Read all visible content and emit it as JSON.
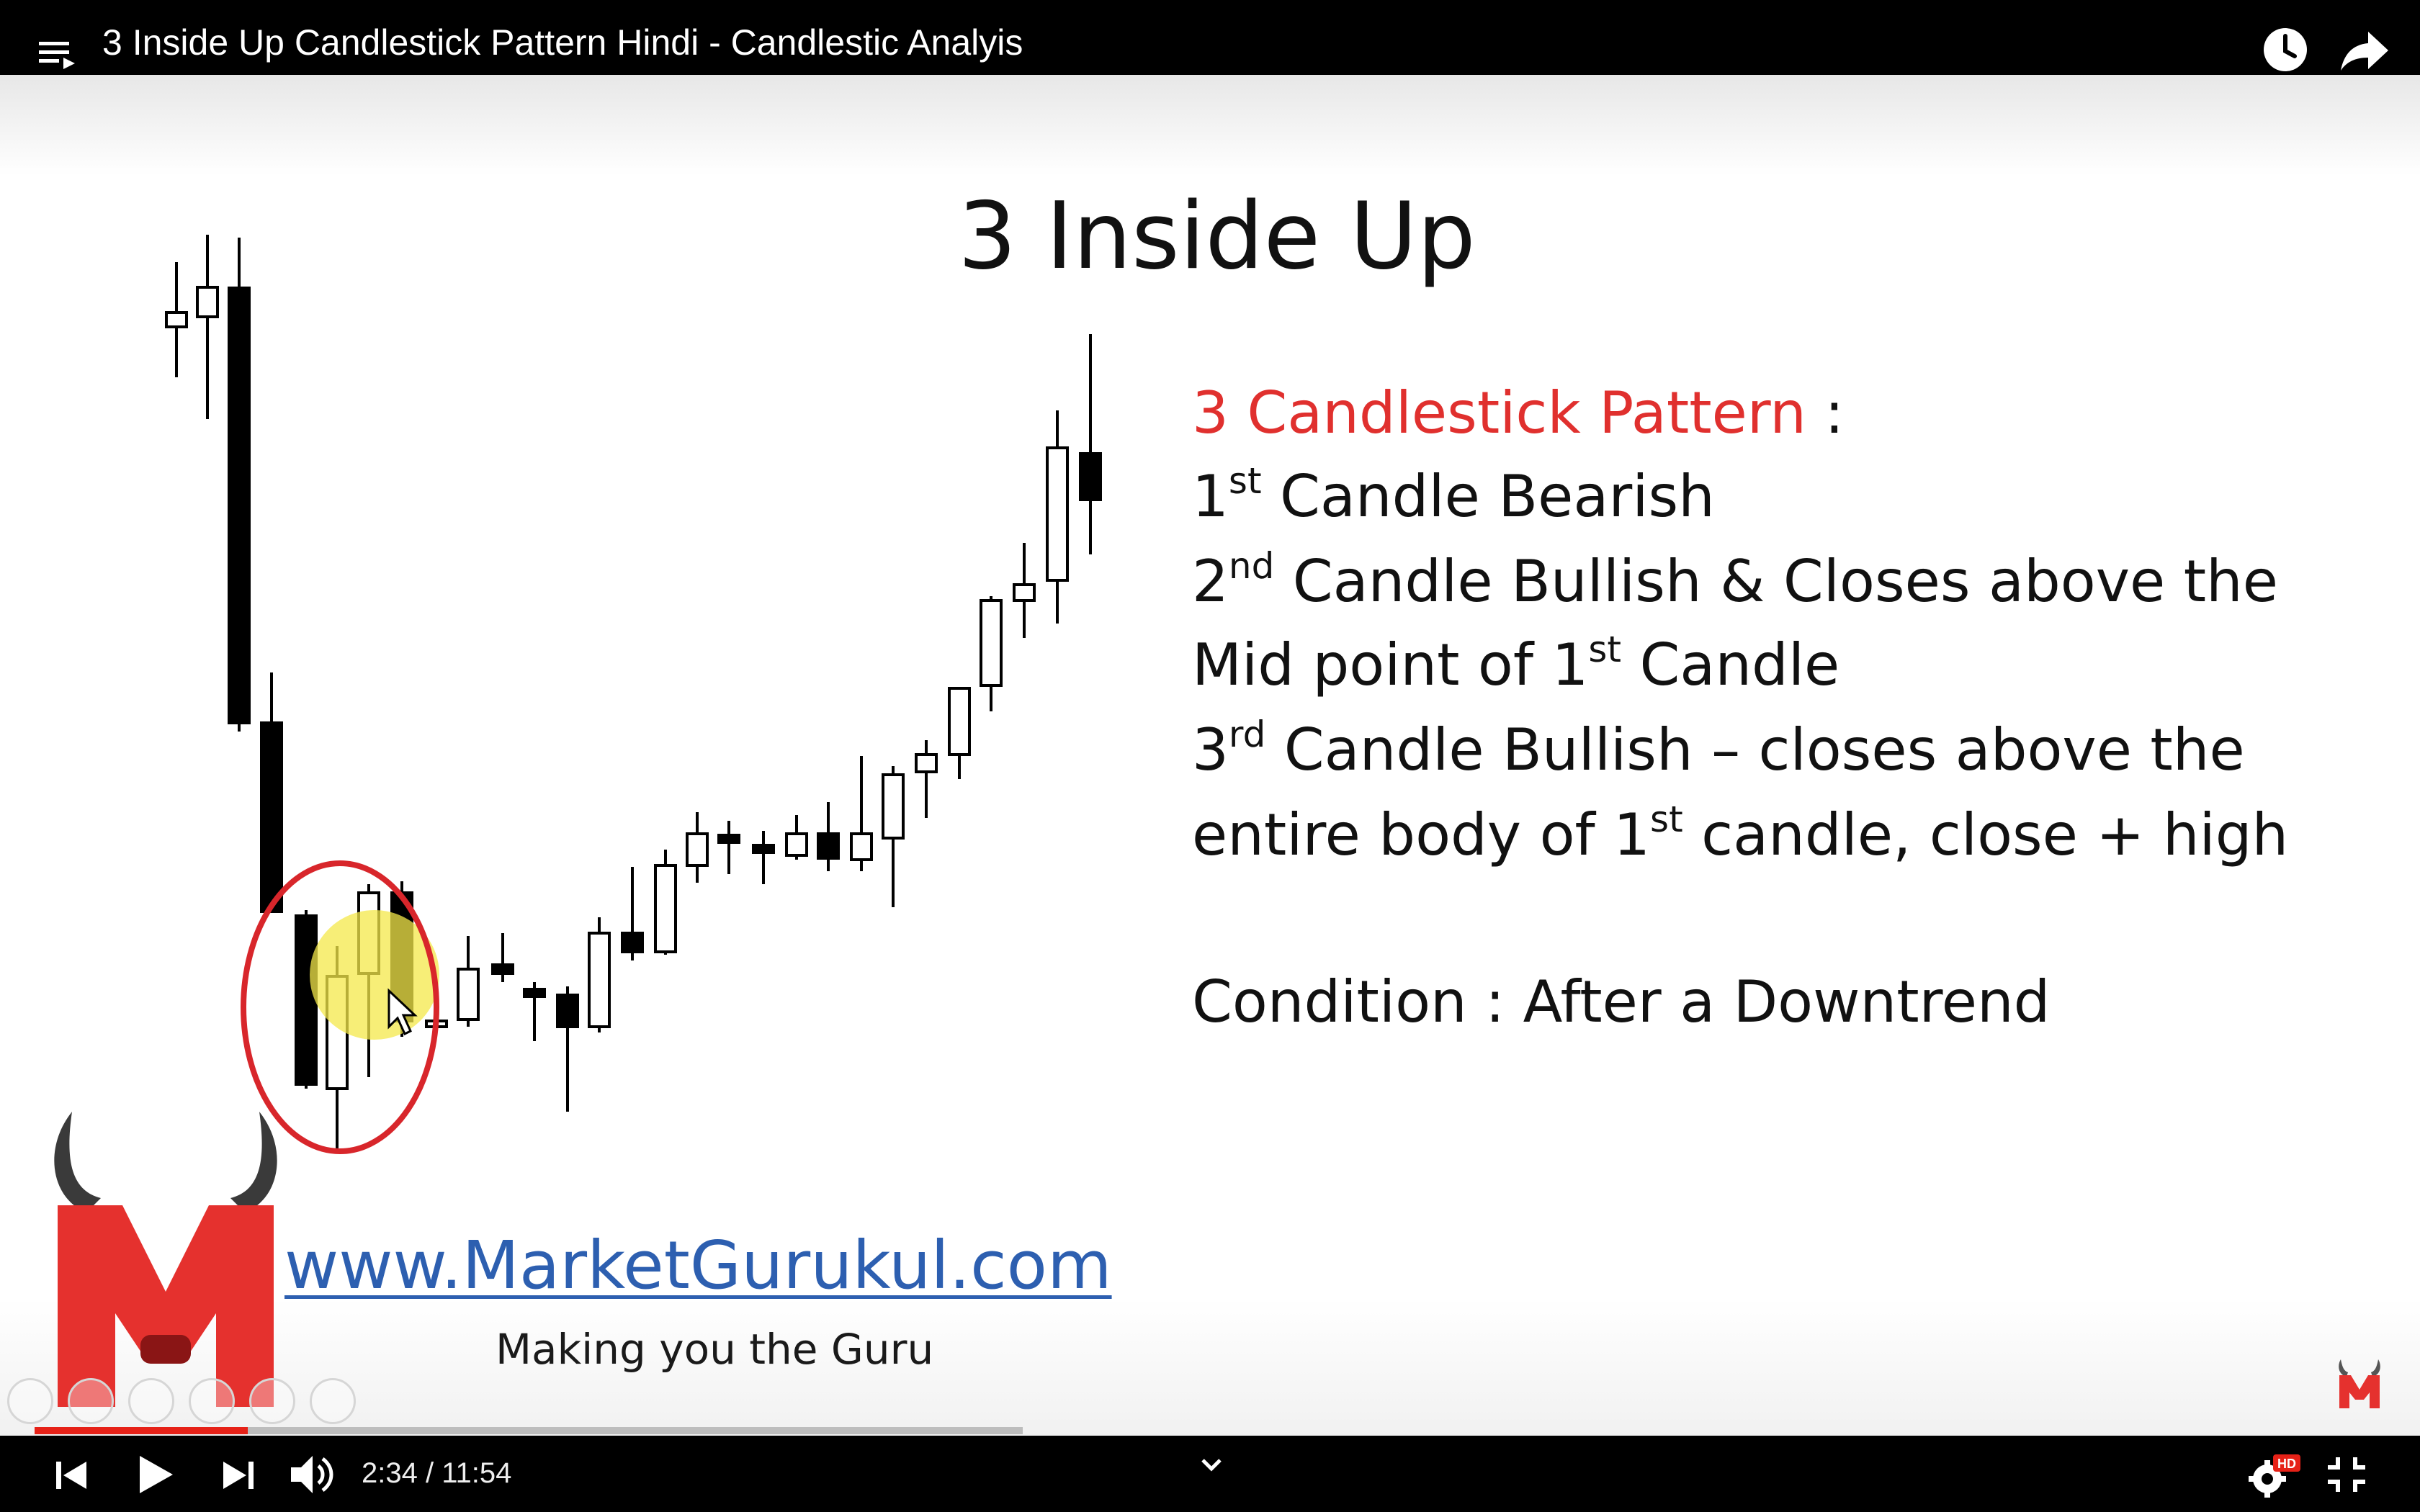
{
  "topbar": {
    "title": "3 Inside Up Candlestick Pattern Hindi - Candlestic Analyis"
  },
  "slide": {
    "title": "3 Inside Up",
    "pattern_heading": "3 Candlestick Pattern",
    "pattern_colon": " :",
    "line1": {
      "pre": "1",
      "sup": "st",
      "post": " Candle Bearish"
    },
    "line2": {
      "pre": "2",
      "sup": "nd",
      "post": " Candle Bullish & Closes above the"
    },
    "line3": {
      "pre": "Mid point of 1",
      "sup": "st",
      "post": " Candle"
    },
    "line4": {
      "pre": "3",
      "sup": "rd",
      "post": " Candle Bullish – closes above the"
    },
    "line5": {
      "pre": "entire body of 1",
      "sup": "st",
      "post": " candle, close + high"
    },
    "condition": "Condition : After a Downtrend",
    "site_url": "www.MarketGurukul.com",
    "tagline": "Making you the Guru",
    "logo_letter": "M"
  },
  "player": {
    "current_time": "2:34",
    "separator": " / ",
    "duration": "11:54",
    "progress_fraction": 0.216,
    "hd_badge": "HD"
  },
  "colors": {
    "accent_red": "#e62117",
    "heading_red": "#e0302e",
    "link_blue": "#2d5fb0"
  },
  "icons": [
    "playlist-icon",
    "watch-later-icon",
    "share-icon",
    "prev-icon",
    "play-icon",
    "next-icon",
    "volume-icon",
    "chevron-down-icon",
    "settings-icon",
    "fullscreen-exit-icon"
  ]
}
